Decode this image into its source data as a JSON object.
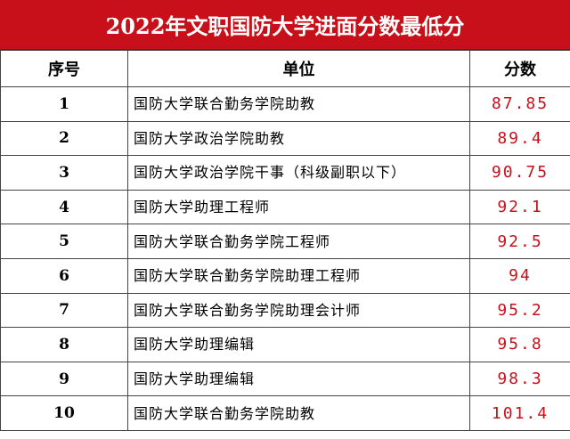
{
  "header": {
    "title": "2022年文职国防大学进面分数最低分"
  },
  "table": {
    "columns": [
      "序号",
      "单位",
      "分数"
    ],
    "rows": [
      [
        1,
        "国防大学联合勤务学院助教",
        87.85
      ],
      [
        2,
        "国防大学政治学院助教",
        89.4
      ],
      [
        3,
        "国防大学政治学院干事（科级副职以下）",
        90.75
      ],
      [
        4,
        "国防大学助理工程师",
        92.1
      ],
      [
        5,
        "国防大学联合勤务学院工程师",
        92.5
      ],
      [
        6,
        "国防大学联合勤务学院助理工程师",
        94
      ],
      [
        7,
        "国防大学联合勤务学院助理会计师",
        95.2
      ],
      [
        8,
        "国防大学助理编辑",
        95.8
      ],
      [
        9,
        "国防大学助理编辑",
        98.3
      ],
      [
        10,
        "国防大学联合勤务学院助教",
        101.4
      ]
    ]
  }
}
